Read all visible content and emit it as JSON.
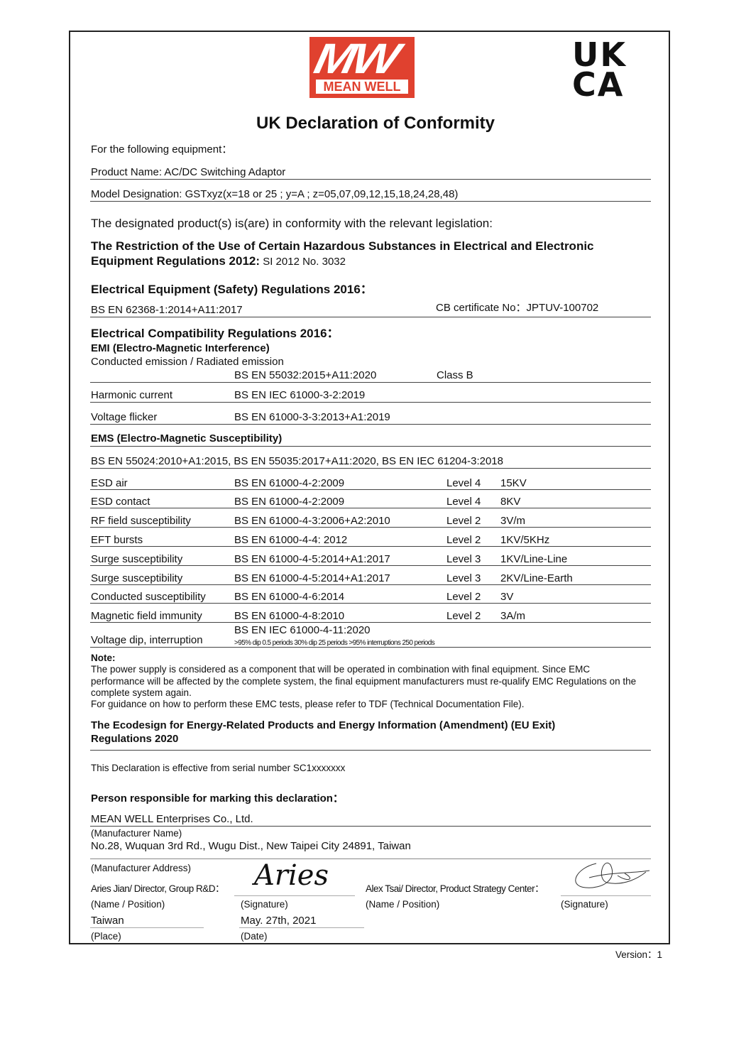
{
  "logo": {
    "mark": "MW",
    "brand": "MEAN WELL",
    "color": "#e0412f"
  },
  "ukca_mark": {
    "line1": "UK",
    "line2": "CA"
  },
  "title": "UK Declaration of Conformity",
  "intro": "For the following equipment：",
  "product_name": "Product Name: AC/DC Switching Adaptor",
  "model": "Model Designation: GSTxyz(x=18 or 25 ; y=A ; z=05,07,09,12,15,18,24,28,48)",
  "conformity": "The designated product(s) is(are) in conformity with the relevant legislation:",
  "rohs": {
    "line1": "The Restriction of the Use of Certain Hazardous Substances in Electrical and Electronic",
    "line2": "Equipment Regulations 2012:",
    "ref": " SI 2012 No. 3032"
  },
  "safety": {
    "heading": "Electrical Equipment (Safety) Regulations 2016：",
    "standard": "BS EN 62368-1:2014+A11:2017",
    "cb": "CB certificate No：JPTUV-100702"
  },
  "emc": {
    "heading": "Electrical Compatibility Regulations 2016：",
    "emi_heading": "EMI (Electro-Magnetic Interference)",
    "emi_label": "Conducted emission / Radiated emission",
    "emi_standard": "BS EN 55032:2015+A11:2020",
    "emi_class": "Class B",
    "harmonic": {
      "label": "Harmonic current",
      "standard": "BS EN IEC 61000-3-2:2019"
    },
    "flicker": {
      "label": "Voltage flicker",
      "standard": "BS EN 61000-3-3:2013+A1:2019"
    },
    "ems_heading": "EMS (Electro-Magnetic Susceptibility)",
    "ems_standards": "BS EN 55024:2010+A1:2015, BS EN 55035:2017+A11:2020, BS EN IEC 61204-3:2018",
    "ems_rows": [
      {
        "label": "ESD air",
        "standard": "BS EN 61000-4-2:2009",
        "level": "Level 4",
        "value": "15KV"
      },
      {
        "label": "ESD contact",
        "standard": "BS EN 61000-4-2:2009",
        "level": "Level 4",
        "value": "8KV"
      },
      {
        "label": "RF field susceptibility",
        "standard": "BS EN 61000-4-3:2006+A2:2010",
        "level": "Level 2",
        "value": "3V/m"
      },
      {
        "label": "EFT bursts",
        "standard": "BS EN 61000-4-4: 2012",
        "level": "Level 2",
        "value": "1KV/5KHz"
      },
      {
        "label": "Surge susceptibility",
        "standard": "BS EN 61000-4-5:2014+A1:2017",
        "level": "Level 3",
        "value": "1KV/Line-Line"
      },
      {
        "label": "Surge susceptibility",
        "standard": "BS EN 61000-4-5:2014+A1:2017",
        "level": "Level 3",
        "value": "2KV/Line-Earth"
      },
      {
        "label": "Conducted susceptibility",
        "standard": "BS EN 61000-4-6:2014",
        "level": "Level 2",
        "value": "3V"
      },
      {
        "label": "Magnetic field immunity",
        "standard": "BS EN 61000-4-8:2010",
        "level": "Level 2",
        "value": "3A/m"
      }
    ],
    "dip": {
      "label": "Voltage dip, interruption",
      "standard": "BS EN IEC 61000-4-11:2020",
      "detail": ">95% dip 0.5 periods   30% dip 25 periods   >95% interruptions 250 periods"
    }
  },
  "note": {
    "heading": "Note:",
    "lines": [
      "The power supply is considered as a component that will be operated in combination with final equipment. Since EMC",
      "performance will be affected by the complete system, the final equipment manufacturers must re-qualify EMC Regulations on the",
      "complete system again.",
      "For guidance on how to perform these EMC tests, please refer to TDF (Technical Documentation File)."
    ]
  },
  "ecodesign": {
    "line1": "The Ecodesign for Energy-Related Products and Energy Information (Amendment) (EU Exit)",
    "line2": "Regulations 2020"
  },
  "effective": "This Declaration is effective from serial number SC1xxxxxxx",
  "responsible": "Person responsible for marking this declaration：",
  "manufacturer": {
    "name": "MEAN WELL Enterprises Co., Ltd.",
    "name_caption": "(Manufacturer Name)",
    "address": "No.28, Wuquan 3rd Rd., Wugu Dist., New Taipei City 24891, Taiwan",
    "address_caption": "(Manufacturer Address)"
  },
  "signatories": {
    "left_name": "Aries Jian/ Director, Group R&D：",
    "left_signature": "Aries",
    "right_name": "Alex Tsai/ Director, Product Strategy Center：",
    "name_caption": "(Name / Position)",
    "signature_caption": "(Signature)"
  },
  "place": {
    "value": "Taiwan",
    "caption": "(Place)"
  },
  "date": {
    "value": "May. 27th, 2021",
    "caption": "(Date)"
  },
  "version": "Version：1"
}
